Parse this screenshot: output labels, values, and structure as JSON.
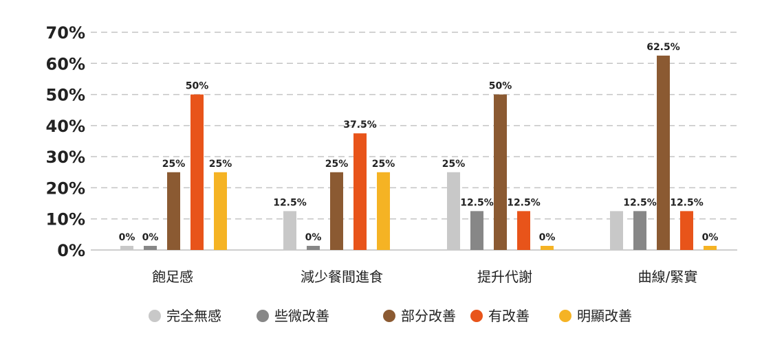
{
  "chart_data": {
    "type": "bar",
    "categories": [
      "飽足感",
      "減少餐間進食",
      "提升代謝",
      "曲線/緊實"
    ],
    "series": [
      {
        "name": "完全無感",
        "color": "#c8c8c8",
        "values": [
          0,
          12.5,
          25,
          12.5
        ],
        "labels": [
          "0%",
          "12.5%",
          "25%",
          ""
        ]
      },
      {
        "name": "些微改善",
        "color": "#878787",
        "values": [
          0,
          0,
          12.5,
          12.5
        ],
        "labels": [
          "0%",
          "0%",
          "12.5%",
          "12.5%"
        ]
      },
      {
        "name": "部分改善",
        "color": "#8b5a32",
        "values": [
          25,
          25,
          50,
          62.5
        ],
        "labels": [
          "25%",
          "25%",
          "50%",
          "62.5%"
        ]
      },
      {
        "name": "有改善",
        "color": "#e8541a",
        "values": [
          50,
          37.5,
          12.5,
          12.5
        ],
        "labels": [
          "50%",
          "37.5%",
          "12.5%",
          "12.5%"
        ]
      },
      {
        "name": "明顯改善",
        "color": "#f5b324",
        "values": [
          25,
          25,
          0,
          0
        ],
        "labels": [
          "25%",
          "25%",
          "0%",
          "0%"
        ]
      }
    ],
    "yticks": [
      "0%",
      "10%",
      "20%",
      "30%",
      "40%",
      "50%",
      "60%",
      "70%"
    ],
    "ylim": [
      0,
      70
    ],
    "grid": true,
    "legend": "bottom"
  }
}
